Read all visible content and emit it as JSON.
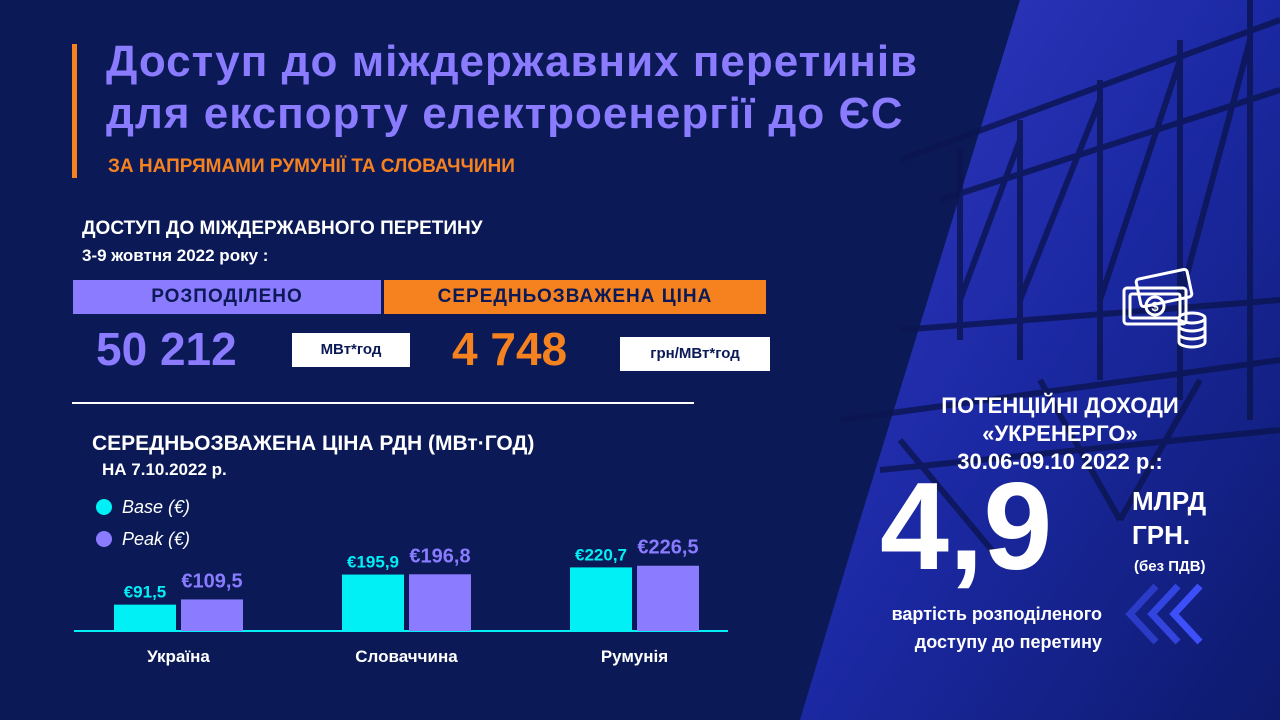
{
  "header": {
    "title_line1": "Доступ до міждержавних перетинів",
    "title_line2": "для експорту електроенергії до ЄС",
    "subtitle": "ЗА НАПРЯМАМИ РУМУНІЇ ТА СЛОВАЧЧИНИ"
  },
  "access": {
    "heading": "ДОСТУП ДО МІЖДЕРЖАВНОГО ПЕРЕТИНУ",
    "period": "3-9 жовтня 2022 року :",
    "allocated_label": "РОЗПОДІЛЕНО",
    "allocated_value": "50 212",
    "allocated_unit": "МВт*год",
    "price_label": "СЕРЕДНЬОЗВАЖЕНА  ЦІНА",
    "price_value": "4 748",
    "price_unit": "грн/МВт*год"
  },
  "income": {
    "heading_line1": "ПОТЕНЦІЙНІ ДОХОДИ",
    "heading_line2": "«УКРЕНЕРГО»",
    "heading_line3": "30.06-09.10 2022 р.:",
    "value": "4,9",
    "unit_line1": "МЛРД",
    "unit_line2": "ГРН.",
    "vat_note": "(без ПДВ)",
    "caption_line1": "вартість розподіленого",
    "caption_line2": "доступу до перетину"
  },
  "colors": {
    "background": "#0b1a57",
    "purple": "#8a7bff",
    "orange": "#f5821f",
    "cyan": "#00f0f5",
    "white": "#ffffff"
  },
  "icons": [
    "money-coins-icon",
    "chevrons-left-icon"
  ],
  "chart_data": {
    "type": "bar",
    "title": "СЕРЕДНЬОЗВАЖЕНА  ЦІНА РДН (МВт·ГОД)",
    "subtitle": "НА 7.10.2022 р.",
    "categories": [
      "Україна",
      "Словаччина",
      "Румунія"
    ],
    "series": [
      {
        "name": "Base (€)",
        "values": [
          91.5,
          195.9,
          220.7
        ],
        "labels": [
          "€91,5",
          "€195,9",
          "€220,7"
        ],
        "color": "#00f0f5"
      },
      {
        "name": "Peak (€)",
        "values": [
          109.5,
          196.8,
          226.5
        ],
        "labels": [
          "€109,5",
          "€196,8",
          "€226,5"
        ],
        "color": "#8a7bff"
      }
    ],
    "ylim": [
      0,
      260
    ],
    "grid": false,
    "legend": "top-left"
  }
}
